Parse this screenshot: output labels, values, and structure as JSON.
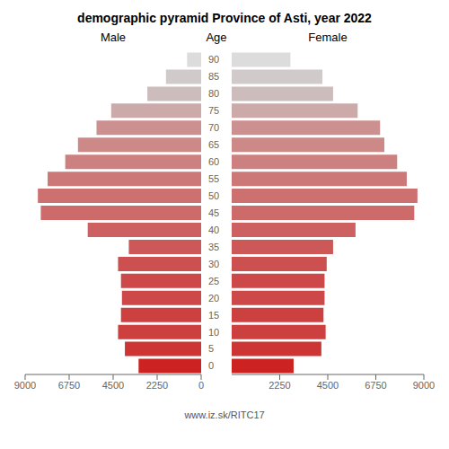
{
  "chart_data": {
    "type": "bar",
    "orientation": "horizontal",
    "title": "demographic pyramid Province of Asti, year 2022",
    "ylabel": "Age",
    "annotations": [
      "www.iz.sk/RITC17"
    ],
    "categories": [
      "0",
      "5",
      "10",
      "15",
      "20",
      "25",
      "30",
      "35",
      "40",
      "45",
      "50",
      "55",
      "60",
      "65",
      "70",
      "75",
      "80",
      "85",
      "90"
    ],
    "series": [
      {
        "name": "Male",
        "values": [
          3200,
          3900,
          4250,
          4100,
          4050,
          4100,
          4250,
          3700,
          5800,
          8200,
          8350,
          7850,
          6950,
          6300,
          5350,
          4600,
          2750,
          1800,
          720
        ],
        "colors": [
          "#cd2222",
          "#cd3535",
          "#cd4040",
          "#cd4040",
          "#cd4848",
          "#cd4848",
          "#cd5050",
          "#cd5858",
          "#cd6060",
          "#cd6a6a",
          "#cd7070",
          "#cd7878",
          "#cd8080",
          "#cd8888",
          "#cd9090",
          "#cdaaaa",
          "#cdbcbc",
          "#d0caca",
          "#dcdcdc"
        ]
      },
      {
        "name": "Female",
        "values": [
          2900,
          4200,
          4400,
          4300,
          4350,
          4350,
          4450,
          4750,
          5800,
          8550,
          8700,
          8200,
          7750,
          7150,
          6950,
          5900,
          4750,
          4250,
          2750
        ],
        "colors": [
          "#cd2222",
          "#cd3535",
          "#cd4040",
          "#cd4040",
          "#cd4848",
          "#cd4848",
          "#cd5050",
          "#cd5858",
          "#cd6060",
          "#cd6a6a",
          "#cd7070",
          "#cd7878",
          "#cd8080",
          "#cd8888",
          "#cd9090",
          "#cdaaaa",
          "#cdbcbc",
          "#d0caca",
          "#dcdcdc"
        ]
      }
    ],
    "xlim": [
      0,
      9000
    ],
    "xticks": [
      0,
      2250,
      4500,
      6750,
      9000
    ]
  }
}
